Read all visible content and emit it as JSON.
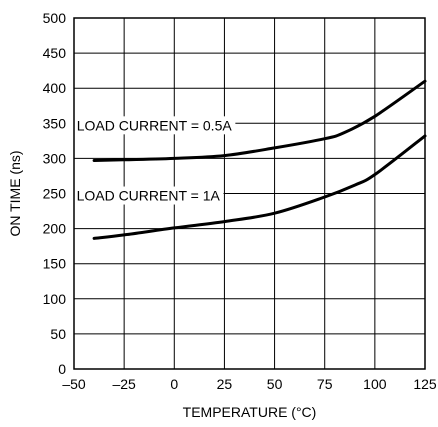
{
  "chart_data": {
    "type": "line",
    "xlabel": "TEMPERATURE (°C)",
    "ylabel": "ON TIME (ns)",
    "xlim": [
      -50,
      125
    ],
    "ylim": [
      0,
      500
    ],
    "x_ticks": [
      -50,
      -25,
      0,
      25,
      50,
      75,
      100,
      125
    ],
    "y_ticks": [
      0,
      50,
      100,
      150,
      200,
      250,
      300,
      350,
      400,
      450,
      500
    ],
    "x_tick_labels": [
      "–50",
      "–25",
      "0",
      "25",
      "50",
      "75",
      "100",
      "125"
    ],
    "y_tick_labels": [
      "0",
      "50",
      "100",
      "150",
      "200",
      "250",
      "300",
      "350",
      "400",
      "450",
      "500"
    ],
    "grid": true,
    "series": [
      {
        "name": "LOAD CURRENT = 0.5A",
        "label_at": {
          "x": -10,
          "y": 340
        },
        "points": [
          [
            -40,
            297
          ],
          [
            -25,
            298
          ],
          [
            0,
            300
          ],
          [
            25,
            304
          ],
          [
            50,
            315
          ],
          [
            75,
            328
          ],
          [
            85,
            337
          ],
          [
            100,
            360
          ],
          [
            125,
            410
          ]
        ]
      },
      {
        "name": "LOAD CURRENT = 1A",
        "label_at": {
          "x": -13,
          "y": 240
        },
        "points": [
          [
            -40,
            186
          ],
          [
            -25,
            191
          ],
          [
            0,
            201
          ],
          [
            25,
            210
          ],
          [
            50,
            222
          ],
          [
            75,
            245
          ],
          [
            90,
            262
          ],
          [
            100,
            277
          ],
          [
            125,
            332
          ]
        ]
      }
    ]
  }
}
